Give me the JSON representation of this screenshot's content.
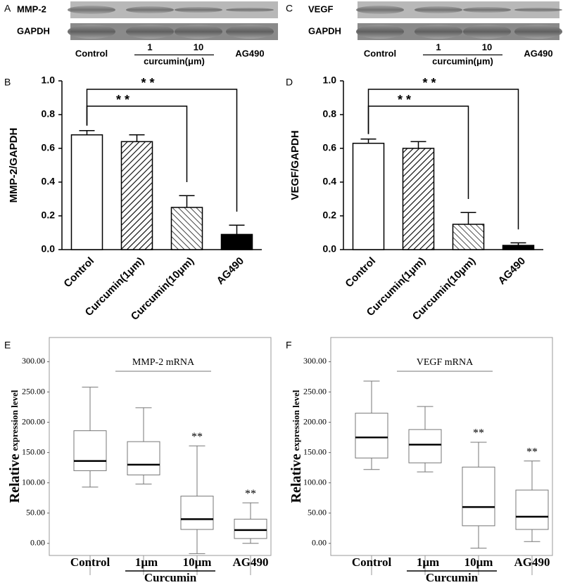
{
  "blots": [
    {
      "panel": "A",
      "rows": [
        "MMP-2",
        "GAPDH"
      ],
      "lanes": [
        "Control",
        "1",
        "10",
        "AG490"
      ],
      "group": "curcumin(μm)"
    },
    {
      "panel": "C",
      "rows": [
        "VEGF",
        "GAPDH"
      ],
      "lanes": [
        "Control",
        "1",
        "10",
        "AG490"
      ],
      "group": "curcumin(μm)"
    }
  ],
  "chart_data": [
    {
      "type": "bar",
      "panel": "B",
      "ylabel": "MMP-2/GAPDH",
      "categories": [
        "Control",
        "Curcumin(1μm)",
        "Curcumin(10μm)",
        "AG490"
      ],
      "values": [
        0.68,
        0.64,
        0.25,
        0.09
      ],
      "errors": [
        0.025,
        0.04,
        0.07,
        0.055
      ],
      "fills": [
        "white",
        "hatch-up",
        "hatch-down",
        "black"
      ],
      "ylim": [
        0,
        1.0
      ],
      "yticks": [
        {
          "value": 0,
          "label": "0.0"
        },
        0.2,
        0.4,
        0.6,
        0.8,
        {
          "value": 1.0,
          "label": "1.0"
        }
      ],
      "brackets": [
        {
          "from": 0,
          "to": 2,
          "label": "* *"
        },
        {
          "from": 0,
          "to": 3,
          "label": "* *"
        }
      ]
    },
    {
      "type": "bar",
      "panel": "D",
      "ylabel": "VEGF/GAPDH",
      "categories": [
        "Control",
        "Curcumin(1μm)",
        "Curcumin(10μm)",
        "AG490"
      ],
      "values": [
        0.63,
        0.6,
        0.15,
        0.025
      ],
      "errors": [
        0.025,
        0.04,
        0.07,
        0.015
      ],
      "fills": [
        "white",
        "hatch-up",
        "hatch-down",
        "black"
      ],
      "ylim": [
        0,
        1.0
      ],
      "yticks": [
        {
          "value": 0,
          "label": "0.0"
        },
        0.2,
        0.4,
        0.6,
        0.8,
        {
          "value": 1.0,
          "label": "1.0"
        }
      ],
      "brackets": [
        {
          "from": 0,
          "to": 2,
          "label": "* *"
        },
        {
          "from": 0,
          "to": 3,
          "label": "* *"
        }
      ]
    },
    {
      "type": "box",
      "panel": "E",
      "title": "MMP-2 mRNA",
      "ylabel": [
        "Relative",
        "expression level"
      ],
      "categories": [
        "Control",
        "1μm",
        "10μm",
        "AG490"
      ],
      "group": "Curcumin",
      "boxes": [
        {
          "min": 93,
          "q1": 120,
          "median": 136,
          "q3": 186,
          "max": 258
        },
        {
          "min": 98,
          "q1": 113,
          "median": 130,
          "q3": 168,
          "max": 224
        },
        {
          "min": -17,
          "q1": 23,
          "median": 40,
          "q3": 78,
          "max": 161
        },
        {
          "min": 0,
          "q1": 8,
          "median": 22,
          "q3": 40,
          "max": 67
        }
      ],
      "annotations": [
        {
          "index": 2,
          "label": "**"
        },
        {
          "index": 3,
          "label": "**"
        }
      ],
      "ylim": [
        -20,
        340
      ],
      "yticks": [
        {
          "value": 0,
          "label": "0.00"
        },
        {
          "value": 50,
          "label": "50.00"
        },
        {
          "value": 100,
          "label": "100.00"
        },
        {
          "value": 150,
          "label": "150.00"
        },
        {
          "value": 200,
          "label": "200.00"
        },
        {
          "value": 250,
          "label": "250.00"
        },
        {
          "value": 300,
          "label": "300.00"
        }
      ]
    },
    {
      "type": "box",
      "panel": "F",
      "title": "VEGF mRNA",
      "ylabel": [
        "Relative",
        "expression level"
      ],
      "categories": [
        "Control",
        "1μm",
        "10μm",
        "AG490"
      ],
      "group": "Curcumin",
      "boxes": [
        {
          "min": 122,
          "q1": 141,
          "median": 175,
          "q3": 215,
          "max": 268
        },
        {
          "min": 118,
          "q1": 133,
          "median": 163,
          "q3": 188,
          "max": 226
        },
        {
          "min": -8,
          "q1": 29,
          "median": 60,
          "q3": 126,
          "max": 167
        },
        {
          "min": 3,
          "q1": 23,
          "median": 44,
          "q3": 88,
          "max": 136
        }
      ],
      "annotations": [
        {
          "index": 2,
          "label": "**"
        },
        {
          "index": 3,
          "label": "**"
        }
      ],
      "ylim": [
        -20,
        340
      ],
      "yticks": [
        {
          "value": 0,
          "label": "0.00"
        },
        {
          "value": 50,
          "label": "50.00"
        },
        {
          "value": 100,
          "label": "100.00"
        },
        {
          "value": 150,
          "label": "150.00"
        },
        {
          "value": 200,
          "label": "200.00"
        },
        {
          "value": 250,
          "label": "250.00"
        },
        {
          "value": 300,
          "label": "300.00"
        }
      ]
    }
  ]
}
